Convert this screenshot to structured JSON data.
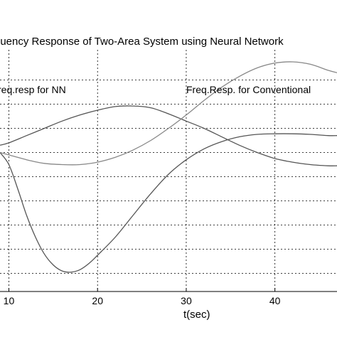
{
  "chart_data": {
    "type": "line",
    "title": "Frequency Response of Two-Area System using Neural Networks",
    "title_visible": "quency Response of Two-Area System using Neural Network",
    "xlabel": "t(sec)",
    "ylabel": "",
    "xlim": [
      9,
      47
    ],
    "ylim": [
      -1.15,
      0.85
    ],
    "x_ticks": [
      10,
      20,
      30,
      40
    ],
    "x_tick_labels": [
      "10",
      "20",
      "30",
      "40"
    ],
    "y_ticks": [
      -1.0,
      -0.8,
      -0.6,
      -0.4,
      -0.2,
      0.0,
      0.2,
      0.4,
      0.6
    ],
    "grid": true,
    "annotations": [
      {
        "text": "req.resp for NN"
      },
      {
        "text": "Freq.Resp. for Conventional"
      }
    ],
    "series": [
      {
        "color": "#555555",
        "x": [
          9,
          10,
          11,
          12,
          13,
          14,
          15,
          16,
          17,
          18,
          19,
          20,
          22,
          24,
          26,
          28,
          30,
          32,
          34,
          36,
          38,
          40,
          42,
          44,
          46,
          47
        ],
        "y": [
          0.0,
          -0.1,
          -0.3,
          -0.52,
          -0.7,
          -0.84,
          -0.93,
          -0.98,
          -0.99,
          -0.97,
          -0.92,
          -0.85,
          -0.7,
          -0.52,
          -0.34,
          -0.18,
          -0.06,
          0.03,
          0.09,
          0.13,
          0.15,
          0.155,
          0.155,
          0.15,
          0.14,
          0.14
        ]
      },
      {
        "color": "#555555",
        "x": [
          9,
          10,
          12,
          14,
          16,
          18,
          20,
          22,
          24,
          26,
          28,
          30,
          32,
          34,
          36,
          38,
          40,
          42,
          44,
          46,
          47
        ],
        "y": [
          0.06,
          0.08,
          0.14,
          0.2,
          0.26,
          0.31,
          0.35,
          0.38,
          0.385,
          0.37,
          0.32,
          0.26,
          0.2,
          0.13,
          0.06,
          0.0,
          -0.05,
          -0.08,
          -0.1,
          -0.11,
          -0.11
        ]
      },
      {
        "color": "#888888",
        "x": [
          9,
          10,
          12,
          14,
          16,
          18,
          20,
          22,
          24,
          26,
          28,
          30,
          32,
          34,
          36,
          38,
          40,
          42,
          44,
          46,
          47
        ],
        "y": [
          0.0,
          -0.02,
          -0.06,
          -0.09,
          -0.1,
          -0.1,
          -0.08,
          -0.04,
          0.02,
          0.1,
          0.2,
          0.31,
          0.43,
          0.54,
          0.63,
          0.7,
          0.74,
          0.75,
          0.73,
          0.68,
          0.66
        ]
      }
    ]
  }
}
